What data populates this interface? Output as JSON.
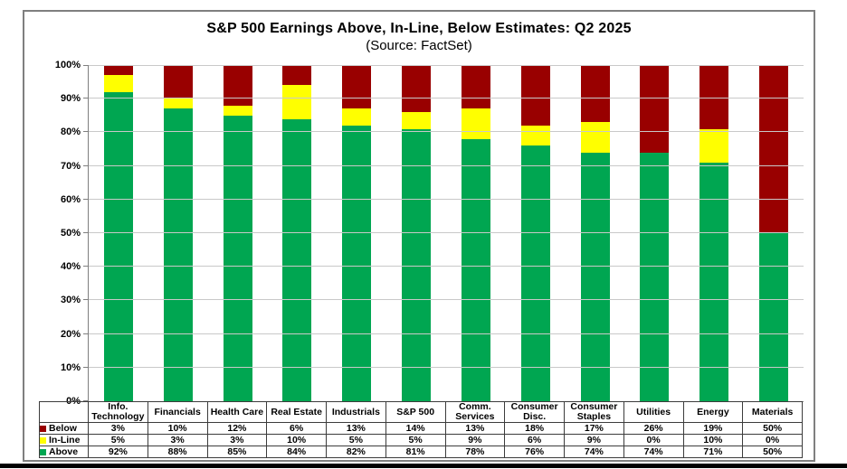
{
  "chart": {
    "title": "S&P 500 Earnings Above, In-Line, Below Estimates: Q2 2025",
    "subtitle": "(Source: FactSet)"
  },
  "chart_data": {
    "type": "bar",
    "stacked": true,
    "title": "S&P 500 Earnings Above, In-Line, Below Estimates: Q2 2025",
    "subtitle": "(Source: FactSet)",
    "categories": [
      "Info. Technology",
      "Financials",
      "Health Care",
      "Real Estate",
      "Industrials",
      "S&P 500",
      "Comm. Services",
      "Consumer Disc.",
      "Consumer Staples",
      "Utilities",
      "Energy",
      "Materials"
    ],
    "series": [
      {
        "name": "Below",
        "color": "#990000",
        "values": [
          3,
          10,
          12,
          6,
          13,
          14,
          13,
          18,
          17,
          26,
          19,
          50
        ]
      },
      {
        "name": "In-Line",
        "color": "#ffff00",
        "values": [
          5,
          3,
          3,
          10,
          5,
          5,
          9,
          6,
          9,
          0,
          10,
          0
        ]
      },
      {
        "name": "Above",
        "color": "#00a651",
        "values": [
          92,
          88,
          85,
          84,
          82,
          81,
          78,
          76,
          74,
          74,
          71,
          50
        ]
      }
    ],
    "value_suffix": "%",
    "xlabel": "",
    "ylabel": "",
    "ylim": [
      0,
      100
    ],
    "y_step": 10,
    "y_tick_suffix": "%",
    "grid": true,
    "legend_position": "data-table-left",
    "colors": {
      "gridline": "#c9c9c9",
      "axis": "#7f7f7f",
      "frame_border": "#7f7f7f",
      "table_border": "#3c3c3c",
      "page_bottom_bar": "#000000"
    }
  }
}
